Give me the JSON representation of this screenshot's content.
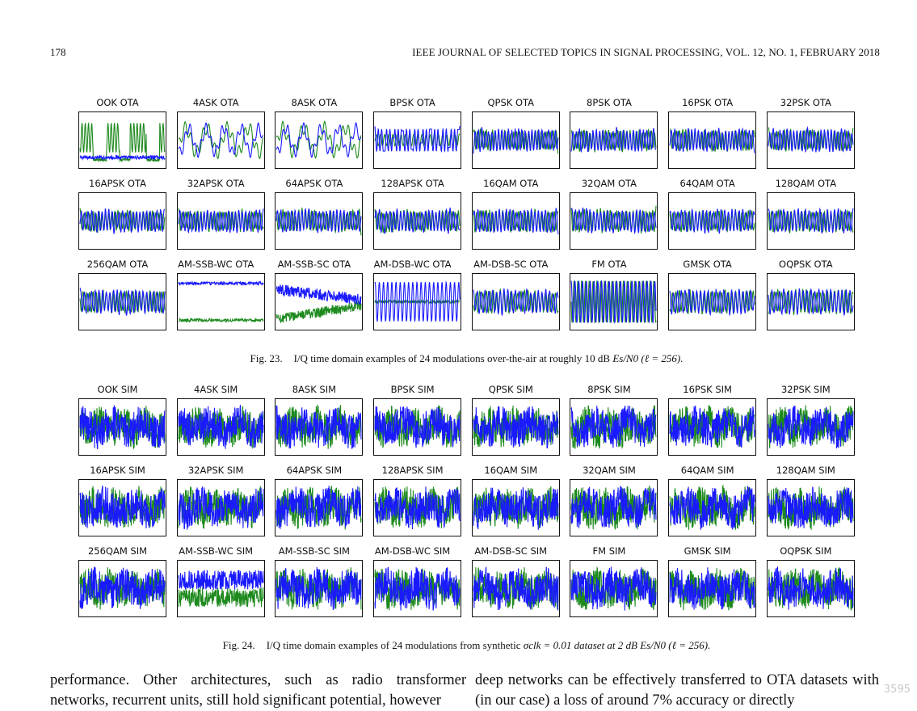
{
  "header": {
    "page_number": "178",
    "running_head": "IEEE JOURNAL OF SELECTED TOPICS IN SIGNAL PROCESSING, VOL. 12, NO. 1, FEBRUARY 2018"
  },
  "colors": {
    "i_channel": "#1a1aff",
    "q_channel": "#1e8a1e",
    "frame": "#111111"
  },
  "fig23": {
    "label": "Fig. 23.",
    "caption_text": "I/Q time domain examples of 24 modulations over-the-air at roughly 10 dB",
    "caption_math": "Es/N0 (ℓ = 256).",
    "panels": [
      {
        "title": "OOK OTA",
        "style": "ook"
      },
      {
        "title": "4ASK OTA",
        "style": "ask"
      },
      {
        "title": "8ASK OTA",
        "style": "ask"
      },
      {
        "title": "BPSK OTA",
        "style": "bpsk"
      },
      {
        "title": "QPSK OTA",
        "style": "psk"
      },
      {
        "title": "8PSK OTA",
        "style": "psk"
      },
      {
        "title": "16PSK OTA",
        "style": "psk"
      },
      {
        "title": "32PSK OTA",
        "style": "psk"
      },
      {
        "title": "16APSK OTA",
        "style": "psk"
      },
      {
        "title": "32APSK OTA",
        "style": "psk"
      },
      {
        "title": "64APSK OTA",
        "style": "psk"
      },
      {
        "title": "128APSK OTA",
        "style": "psk"
      },
      {
        "title": "16QAM OTA",
        "style": "psk"
      },
      {
        "title": "32QAM OTA",
        "style": "psk"
      },
      {
        "title": "64QAM OTA",
        "style": "psk"
      },
      {
        "title": "128QAM OTA",
        "style": "psk"
      },
      {
        "title": "256QAM OTA",
        "style": "psk"
      },
      {
        "title": "AM-SSB-WC OTA",
        "style": "ssbwc"
      },
      {
        "title": "AM-SSB-SC OTA",
        "style": "ssbsc"
      },
      {
        "title": "AM-DSB-WC OTA",
        "style": "dsbwc"
      },
      {
        "title": "AM-DSB-SC OTA",
        "style": "psk"
      },
      {
        "title": "FM OTA",
        "style": "fm"
      },
      {
        "title": "GMSK OTA",
        "style": "psk"
      },
      {
        "title": "OQPSK OTA",
        "style": "psk"
      }
    ]
  },
  "fig24": {
    "label": "Fig. 24.",
    "caption_text": "I/Q time domain examples of 24 modulations from synthetic",
    "caption_math": "σclk = 0.01 dataset at 2 dB Es/N0 (ℓ = 256).",
    "panels": [
      {
        "title": "OOK SIM",
        "style": "noisy"
      },
      {
        "title": "4ASK SIM",
        "style": "noisy"
      },
      {
        "title": "8ASK SIM",
        "style": "noisy"
      },
      {
        "title": "BPSK SIM",
        "style": "noisy"
      },
      {
        "title": "QPSK SIM",
        "style": "noisy"
      },
      {
        "title": "8PSK SIM",
        "style": "noisy"
      },
      {
        "title": "16PSK SIM",
        "style": "noisy"
      },
      {
        "title": "32PSK SIM",
        "style": "noisy"
      },
      {
        "title": "16APSK SIM",
        "style": "noisy"
      },
      {
        "title": "32APSK SIM",
        "style": "noisy"
      },
      {
        "title": "64APSK SIM",
        "style": "noisy"
      },
      {
        "title": "128APSK SIM",
        "style": "noisy"
      },
      {
        "title": "16QAM SIM",
        "style": "noisy"
      },
      {
        "title": "32QAM SIM",
        "style": "noisy"
      },
      {
        "title": "64QAM SIM",
        "style": "noisy"
      },
      {
        "title": "128QAM SIM",
        "style": "noisy"
      },
      {
        "title": "256QAM SIM",
        "style": "noisy"
      },
      {
        "title": "AM-SSB-WC SIM",
        "style": "noisyssb"
      },
      {
        "title": "AM-SSB-SC SIM",
        "style": "noisy"
      },
      {
        "title": "AM-DSB-WC SIM",
        "style": "noisy"
      },
      {
        "title": "AM-DSB-SC SIM",
        "style": "noisy"
      },
      {
        "title": "FM SIM",
        "style": "noisy"
      },
      {
        "title": "GMSK SIM",
        "style": "noisy"
      },
      {
        "title": "OQPSK SIM",
        "style": "noisy"
      }
    ]
  },
  "body": {
    "left_column": "performance. Other architectures, such as radio transformer networks, recurrent units, still hold significant potential, however",
    "right_column": "deep networks can be effectively transferred to OTA datasets with (in our case) a loss of around 7% accuracy or directly"
  },
  "watermark": "3595"
}
